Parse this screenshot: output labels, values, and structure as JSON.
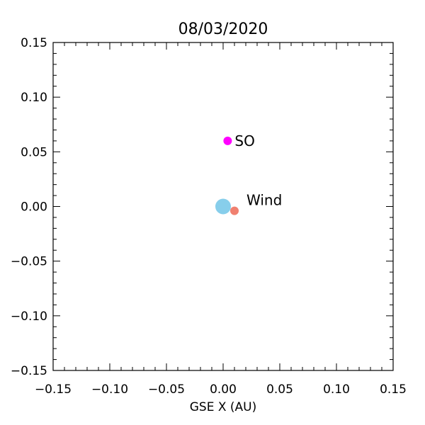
{
  "chart_data": {
    "type": "scatter",
    "title": "08/03/2020",
    "xlabel": "GSE X (AU)",
    "ylabel": "",
    "xlim": [
      -0.15,
      0.15
    ],
    "ylim": [
      -0.15,
      0.15
    ],
    "grid": false,
    "x_ticks": [
      -0.15,
      -0.1,
      -0.05,
      0.0,
      0.05,
      0.1,
      0.15
    ],
    "y_ticks": [
      -0.15,
      -0.1,
      -0.05,
      0.0,
      0.05,
      0.1,
      0.15
    ],
    "x_tick_labels": [
      "−0.15",
      "−0.10",
      "−0.05",
      "0.00",
      "0.05",
      "0.10",
      "0.15"
    ],
    "y_tick_labels": [
      "−0.15",
      "−0.10",
      "−0.05",
      "0.00",
      "0.05",
      "0.10",
      "0.15"
    ],
    "points": [
      {
        "label": "",
        "x": 0.0,
        "y": 0.0,
        "color": "#87ceeb",
        "size": "large"
      },
      {
        "label": "SO",
        "x": 0.004,
        "y": 0.06,
        "color": "#ff00ff",
        "size": "small"
      },
      {
        "label": "Wind",
        "x": 0.01,
        "y": -0.004,
        "color": "#f08070",
        "size": "small"
      }
    ]
  }
}
